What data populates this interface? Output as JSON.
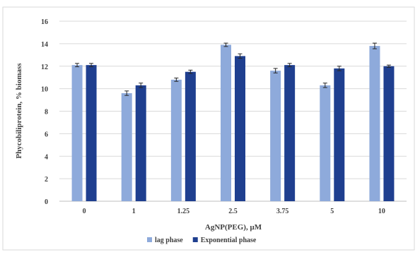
{
  "chart_data": {
    "type": "bar",
    "title": "",
    "xlabel": "AgNP(PEG), μM",
    "ylabel": "Phycobiliprotein, % biomass",
    "categories": [
      "0",
      "1",
      "1.25",
      "2.5",
      "3.75",
      "5",
      "10"
    ],
    "ylim": [
      0,
      16
    ],
    "yticks": [
      0,
      2,
      4,
      6,
      8,
      10,
      12,
      14,
      16
    ],
    "grid": true,
    "legend_position": "bottom",
    "series": [
      {
        "name": "lag phase",
        "color": "#8eaadb",
        "values": [
          12.1,
          9.6,
          10.8,
          13.9,
          11.6,
          10.3,
          13.8
        ],
        "errors": [
          0.15,
          0.2,
          0.15,
          0.15,
          0.2,
          0.2,
          0.25
        ]
      },
      {
        "name": "Exponential phase",
        "color": "#1f3f8f",
        "values": [
          12.1,
          10.3,
          11.5,
          12.9,
          12.1,
          11.8,
          12.0
        ],
        "errors": [
          0.15,
          0.2,
          0.15,
          0.2,
          0.15,
          0.2,
          0.1
        ]
      }
    ]
  }
}
